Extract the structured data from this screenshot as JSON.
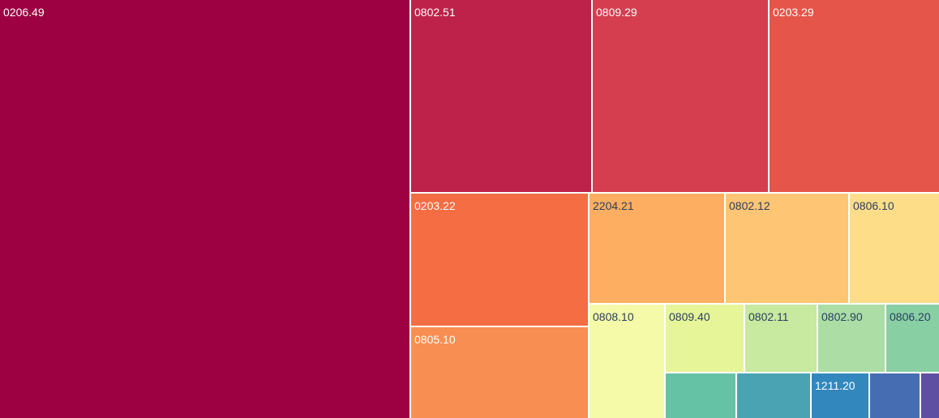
{
  "chart_data": {
    "type": "treemap",
    "items": [
      {
        "label": "0206.49",
        "color": "#9e0142"
      },
      {
        "label": "0802.51",
        "color": "#be2149"
      },
      {
        "label": "0809.29",
        "color": "#d53e4f"
      },
      {
        "label": "0203.29",
        "color": "#e55549"
      },
      {
        "label": "0203.22",
        "color": "#f46d43"
      },
      {
        "label": "0805.10",
        "color": "#f98e52"
      },
      {
        "label": "2204.21",
        "color": "#fdae61"
      },
      {
        "label": "0802.12",
        "color": "#fec574"
      },
      {
        "label": "0806.10",
        "color": "#fedd89"
      },
      {
        "label": "0808.10",
        "color": "#f4faa8"
      },
      {
        "label": "0809.40",
        "color": "#e6f598"
      },
      {
        "label": "0802.11",
        "color": "#c7e9a0"
      },
      {
        "label": "0802.90",
        "color": "#abdda4"
      },
      {
        "label": "0806.20",
        "color": "#88cfa4"
      },
      {
        "label": "",
        "color": "#66c2a5"
      },
      {
        "label": "",
        "color": "#4aa3b2"
      },
      {
        "label": "1211.20",
        "color": "#3288bd"
      },
      {
        "label": "",
        "color": "#466db1"
      },
      {
        "label": "",
        "color": "#5e4fa2"
      }
    ]
  }
}
